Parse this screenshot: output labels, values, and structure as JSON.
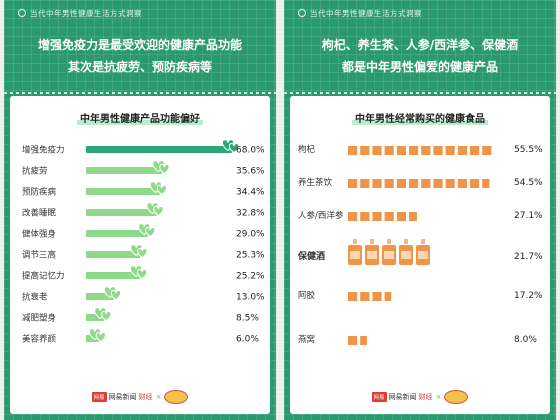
{
  "left": {
    "tag": "当代中年男性健康生活方式洞察",
    "headline_line1": "增强免疫力是最受欢迎的健康产品功能",
    "headline_line2": "其次是抗疲劳、预防疾病等",
    "footer": {
      "brand": "网易新闻",
      "sub": "财经",
      "x": "×"
    },
    "chart_data": {
      "type": "bar",
      "title": "中年男性健康产品功能偏好",
      "categories": [
        "增强免疫力",
        "抗疲劳",
        "预防疾病",
        "改善睡眠",
        "健体强身",
        "调节三高",
        "提高记忆力",
        "抗衰老",
        "减肥塑身",
        "美容养颜"
      ],
      "values": [
        68.0,
        35.6,
        34.4,
        32.8,
        29.0,
        25.3,
        25.2,
        13.0,
        8.5,
        6.0
      ],
      "value_labels": [
        "68.0%",
        "35.6%",
        "34.4%",
        "32.8%",
        "29.0%",
        "25.3%",
        "25.2%",
        "13.0%",
        "8.5%",
        "6.0%"
      ],
      "unit": "%",
      "highlight_index": 0,
      "colors": {
        "highlight": "#2aa775",
        "bar": "#8fd98a",
        "heart": "#ffffff"
      }
    }
  },
  "right": {
    "tag": "当代中年男性健康生活方式洞察",
    "headline_line1": "枸杞、养生茶、人参/西洋参、保健酒",
    "headline_line2": "都是中年男性偏爱的健康产品",
    "footer": {
      "brand": "网易新闻",
      "sub": "财经",
      "x": "×"
    },
    "chart_data": {
      "type": "bar",
      "title": "中年男性经常购买的健康食品",
      "categories": [
        "枸杞",
        "养生茶饮",
        "人参/西洋参",
        "保健酒",
        "阿胶",
        "燕窝"
      ],
      "values": [
        55.5,
        54.5,
        27.1,
        21.7,
        17.2,
        8.0
      ],
      "value_labels": [
        "55.5%",
        "54.5%",
        "27.1%",
        "21.7%",
        "17.2%",
        "8.0%"
      ],
      "unit": "%",
      "icon_type": [
        "block",
        "block",
        "block",
        "bottle",
        "block",
        "block"
      ],
      "colors": {
        "block": "#f0944a",
        "block_light": "#fcd7b4",
        "bottle_cap": "#f6b48a"
      }
    }
  }
}
